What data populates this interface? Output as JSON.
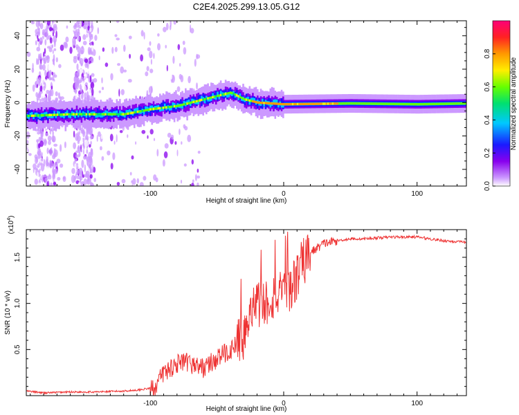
{
  "title": "C2E4.2025.299.13.05.G12",
  "chart_data": [
    {
      "type": "heatmap",
      "xlabel": "Height of straight line (km)",
      "ylabel": "Frequency (Hz)",
      "xlim": [
        -193,
        137
      ],
      "ylim": [
        -50,
        49
      ],
      "xticks": [
        -100,
        0,
        100
      ],
      "yticks": [
        -40,
        -20,
        0,
        20,
        40
      ],
      "colorbar": {
        "label": "Normalized spectral amplitude",
        "range": [
          0,
          1
        ],
        "ticks": [
          0.0,
          0.2,
          0.4,
          0.6,
          0.8
        ]
      },
      "trace": {
        "description": "Dominant frequency ridge",
        "height_km": [
          -193,
          -160,
          -140,
          -120,
          -100,
          -80,
          -60,
          -40,
          -30,
          -20,
          0,
          50,
          100,
          137
        ],
        "frequency_hz": [
          -8,
          -7,
          -7,
          -7,
          -4,
          -2,
          2,
          6,
          2,
          0,
          -1,
          -0.5,
          -1,
          -0.5
        ]
      }
    },
    {
      "type": "line",
      "xlabel": "Height of straight line (km)",
      "ylabel": "SNR (10 * v/v)",
      "scale_label_base": "(x10",
      "scale_label_exp": "4",
      "scale_label_close": ")",
      "xlim": [
        -193,
        137
      ],
      "ylim": [
        0,
        1.8
      ],
      "xticks": [
        -100,
        0,
        100
      ],
      "yticks": [
        0.5,
        1.0,
        1.5
      ],
      "series": [
        {
          "name": "SNR",
          "color": "#ee3333",
          "x": [
            -193,
            -180,
            -160,
            -140,
            -120,
            -110,
            -100,
            -95,
            -90,
            -80,
            -70,
            -60,
            -50,
            -40,
            -35,
            -30,
            -25,
            -20,
            -15,
            -10,
            -5,
            0,
            5,
            10,
            15,
            20,
            30,
            40,
            50,
            60,
            80,
            100,
            120,
            137
          ],
          "y": [
            0.05,
            0.03,
            0.04,
            0.04,
            0.05,
            0.06,
            0.08,
            0.12,
            0.25,
            0.35,
            0.35,
            0.3,
            0.4,
            0.5,
            0.55,
            0.65,
            0.8,
            1.0,
            1.0,
            1.05,
            1.1,
            1.05,
            1.15,
            1.3,
            1.45,
            1.55,
            1.65,
            1.68,
            1.7,
            1.7,
            1.72,
            1.72,
            1.68,
            1.66
          ]
        }
      ]
    }
  ]
}
